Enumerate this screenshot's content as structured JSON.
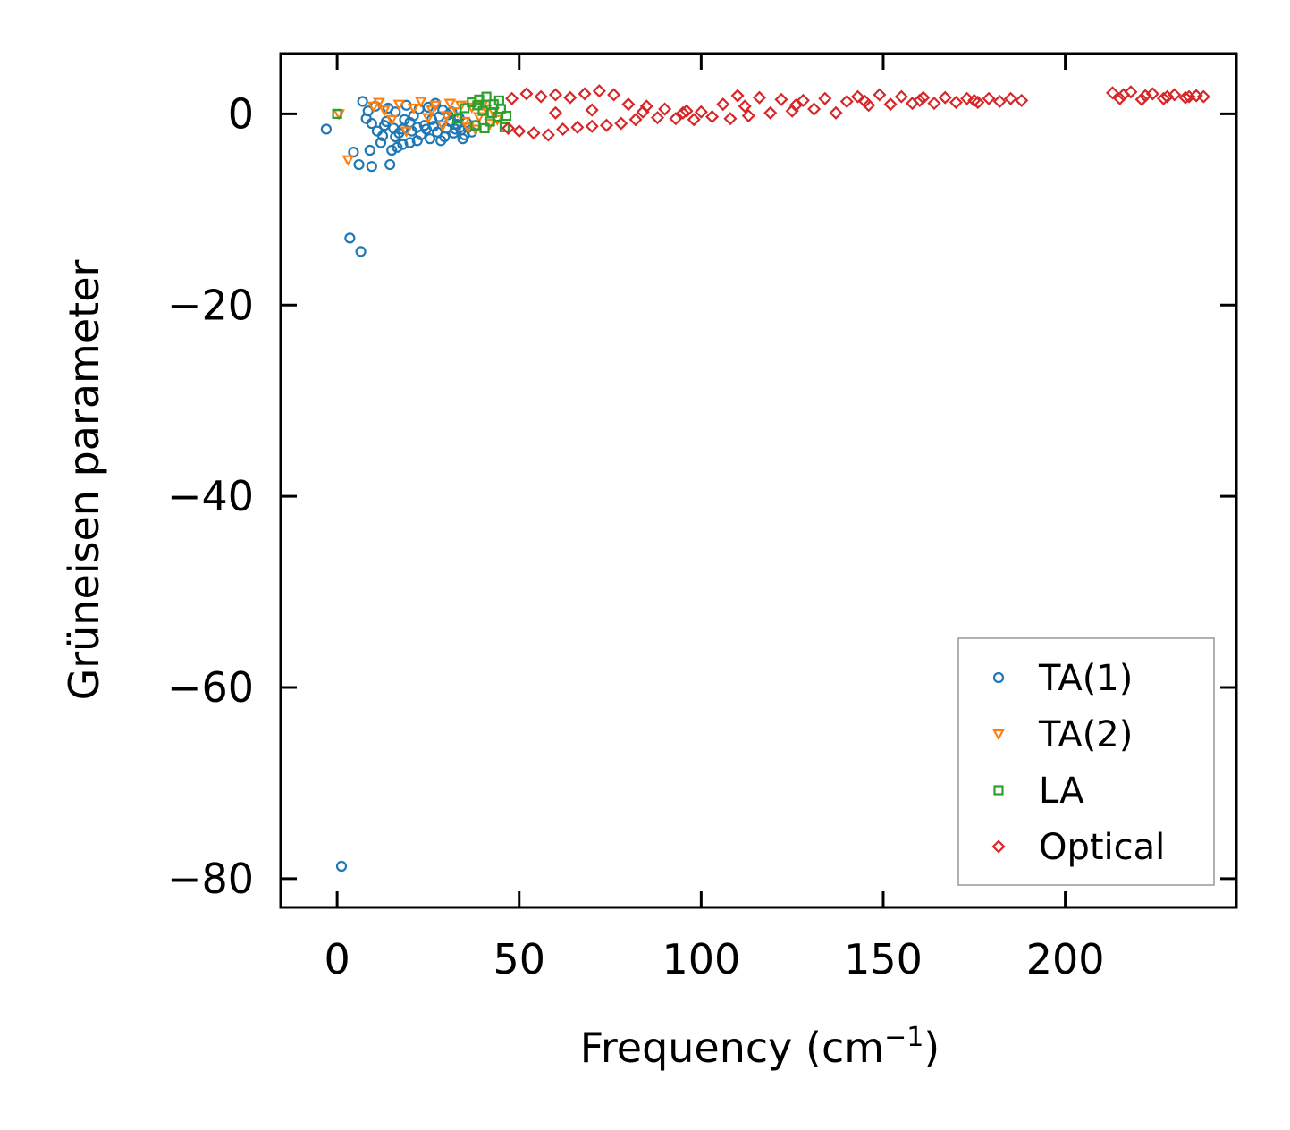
{
  "chart_data": {
    "type": "scatter",
    "xlabel": "Frequency (cm",
    "xlabel_sup": "−1",
    "xlabel_close": ")",
    "ylabel": "Grüneisen parameter",
    "xlim": [
      -15.5,
      247
    ],
    "ylim": [
      -83,
      6.3
    ],
    "xticks": [
      0,
      50,
      100,
      150,
      200
    ],
    "xtick_labels": [
      "0",
      "50",
      "100",
      "150",
      "200"
    ],
    "yticks": [
      0,
      -20,
      -40,
      -60,
      -80
    ],
    "ytick_labels": [
      "0",
      "−20",
      "−40",
      "−60",
      "−80"
    ],
    "grid": false,
    "legend_position": "bottom-right",
    "series": [
      {
        "name": "TA(1)",
        "marker": "circle",
        "color": "#1f77b4",
        "points": [
          [
            -3,
            -1.6
          ],
          [
            1.2,
            -78.7
          ],
          [
            3.5,
            -13
          ],
          [
            6.5,
            -14.4
          ],
          [
            4.5,
            -4
          ],
          [
            6,
            -5.3
          ],
          [
            9.5,
            -5.5
          ],
          [
            14.5,
            -5.3
          ],
          [
            9,
            -3.8
          ],
          [
            12,
            -3
          ],
          [
            15,
            -3.8
          ],
          [
            16.5,
            -3.5
          ],
          [
            18,
            -3.2
          ],
          [
            20,
            -3
          ],
          [
            22,
            -2.8
          ],
          [
            7,
            1.3
          ],
          [
            8,
            -0.5
          ],
          [
            8.5,
            0.3
          ],
          [
            9.5,
            -1
          ],
          [
            10.5,
            0.8
          ],
          [
            11,
            -1.8
          ],
          [
            12.5,
            -2.3
          ],
          [
            13.5,
            -0.8
          ],
          [
            14,
            0.6
          ],
          [
            15.5,
            -1.5
          ],
          [
            16,
            0.2
          ],
          [
            17,
            -2
          ],
          [
            18.5,
            -0.6
          ],
          [
            19,
            0.9
          ],
          [
            20.5,
            -1.8
          ],
          [
            21,
            -0.2
          ],
          [
            22.5,
            0.5
          ],
          [
            23,
            -2.2
          ],
          [
            24,
            -1.2
          ],
          [
            25,
            0.7
          ],
          [
            25.5,
            -2.6
          ],
          [
            26,
            -0.6
          ],
          [
            27,
            1.1
          ],
          [
            27.5,
            -1.9
          ],
          [
            28,
            -0.3
          ],
          [
            29,
            0.4
          ],
          [
            29.5,
            -2.4
          ],
          [
            30,
            -1.5
          ],
          [
            31,
            -0.8
          ],
          [
            31.5,
            0.2
          ],
          [
            32,
            -2
          ],
          [
            33,
            -1.1
          ],
          [
            33.5,
            -0.4
          ],
          [
            34,
            -1.7
          ],
          [
            35,
            -2.2
          ],
          [
            35.5,
            -0.9
          ],
          [
            36,
            -1.4
          ],
          [
            37,
            -1.9
          ],
          [
            38,
            -1.2
          ],
          [
            24.5,
            -1.6
          ],
          [
            26.5,
            -1.3
          ],
          [
            28.5,
            -2.8
          ],
          [
            30.5,
            -0.1
          ],
          [
            32.5,
            -1.6
          ],
          [
            34.5,
            -2.6
          ],
          [
            22,
            -1.4
          ],
          [
            20,
            -0.9
          ],
          [
            18,
            -1.6
          ],
          [
            16,
            -2.4
          ],
          [
            13,
            -1.2
          ]
        ]
      },
      {
        "name": "TA(2)",
        "marker": "triangle",
        "color": "#ff7f0e",
        "points": [
          [
            0.5,
            0
          ],
          [
            3,
            -4.8
          ],
          [
            10,
            0.8
          ],
          [
            11.5,
            1.2
          ],
          [
            13,
            0.4
          ],
          [
            15,
            -0.6
          ],
          [
            17,
            1
          ],
          [
            19,
            -1.8
          ],
          [
            21,
            0.6
          ],
          [
            23,
            1.3
          ],
          [
            25,
            -0.4
          ],
          [
            27,
            0.9
          ],
          [
            29,
            -1.2
          ],
          [
            31,
            1.1
          ],
          [
            33,
            0.2
          ],
          [
            35,
            -0.8
          ],
          [
            37,
            0.7
          ],
          [
            39,
            -0.3
          ],
          [
            41,
            0.5
          ],
          [
            42,
            -1
          ],
          [
            43,
            0.2
          ],
          [
            44,
            -0.6
          ],
          [
            36,
            -1.4
          ],
          [
            34,
            0.9
          ],
          [
            30,
            -0.2
          ],
          [
            26,
            0.4
          ],
          [
            40,
            1
          ],
          [
            38,
            -1.6
          ]
        ]
      },
      {
        "name": "LA",
        "marker": "square",
        "color": "#2ca02c",
        "points": [
          [
            0,
            0
          ],
          [
            33,
            -0.5
          ],
          [
            35,
            0.6
          ],
          [
            37,
            1.2
          ],
          [
            38,
            -1.2
          ],
          [
            39,
            1.5
          ],
          [
            40,
            0.3
          ],
          [
            41,
            1.8
          ],
          [
            42,
            -0.8
          ],
          [
            43,
            1
          ],
          [
            44,
            -0.3
          ],
          [
            45,
            0.5
          ],
          [
            46,
            -1.4
          ],
          [
            46.5,
            -0.2
          ],
          [
            44.5,
            1.4
          ],
          [
            42.5,
            0.1
          ],
          [
            40.5,
            -1.5
          ],
          [
            38.5,
            0.9
          ]
        ]
      },
      {
        "name": "Optical",
        "marker": "diamond",
        "color": "#d62728",
        "points": [
          [
            47,
            -1.5
          ],
          [
            48,
            1.6
          ],
          [
            50,
            -1.8
          ],
          [
            52,
            2.1
          ],
          [
            54,
            -2
          ],
          [
            56,
            1.8
          ],
          [
            58,
            -2.2
          ],
          [
            60,
            2
          ],
          [
            62,
            -1.6
          ],
          [
            64,
            1.7
          ],
          [
            66,
            -1.4
          ],
          [
            68,
            2.1
          ],
          [
            70,
            -1.3
          ],
          [
            72,
            2.4
          ],
          [
            74,
            -1.2
          ],
          [
            76,
            2
          ],
          [
            78,
            -1
          ],
          [
            80,
            1
          ],
          [
            82,
            -0.6
          ],
          [
            85,
            0.8
          ],
          [
            88,
            -0.4
          ],
          [
            90,
            0.5
          ],
          [
            93,
            -0.5
          ],
          [
            96,
            0.3
          ],
          [
            98,
            -0.6
          ],
          [
            100,
            0.2
          ],
          [
            103,
            -0.3
          ],
          [
            106,
            1
          ],
          [
            108,
            -0.5
          ],
          [
            110,
            1.9
          ],
          [
            113,
            -0.2
          ],
          [
            116,
            1.7
          ],
          [
            119,
            0.1
          ],
          [
            122,
            1.5
          ],
          [
            125,
            0.3
          ],
          [
            128,
            1.4
          ],
          [
            131,
            0.5
          ],
          [
            134,
            1.6
          ],
          [
            137,
            0.1
          ],
          [
            140,
            1.3
          ],
          [
            143,
            1.8
          ],
          [
            146,
            0.9
          ],
          [
            149,
            2
          ],
          [
            152,
            1
          ],
          [
            155,
            1.8
          ],
          [
            158,
            1.1
          ],
          [
            161,
            1.7
          ],
          [
            164,
            1.1
          ],
          [
            167,
            1.7
          ],
          [
            170,
            1.2
          ],
          [
            173,
            1.6
          ],
          [
            176,
            1.2
          ],
          [
            179,
            1.6
          ],
          [
            182,
            1.3
          ],
          [
            185,
            1.6
          ],
          [
            188,
            1.4
          ],
          [
            60,
            0.1
          ],
          [
            70,
            0.4
          ],
          [
            84,
            0.2
          ],
          [
            95,
            0.1
          ],
          [
            112,
            0.8
          ],
          [
            126,
            0.9
          ],
          [
            145,
            1.3
          ],
          [
            160,
            1.4
          ],
          [
            175,
            1.4
          ],
          [
            213,
            2.2
          ],
          [
            215,
            1.6
          ],
          [
            218,
            2.3
          ],
          [
            221,
            1.5
          ],
          [
            224,
            2.1
          ],
          [
            227,
            1.6
          ],
          [
            230,
            2
          ],
          [
            233,
            1.7
          ],
          [
            236,
            1.9
          ],
          [
            238,
            1.8
          ],
          [
            216,
            2
          ],
          [
            222,
            1.9
          ],
          [
            228,
            1.8
          ],
          [
            234,
            1.8
          ]
        ]
      }
    ]
  }
}
